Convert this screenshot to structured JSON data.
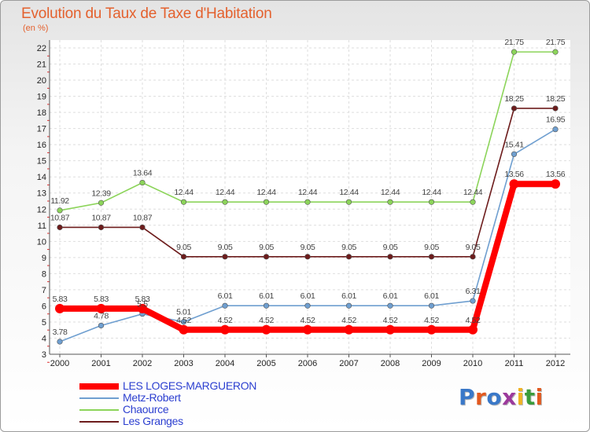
{
  "header": {
    "title": "Evolution du Taux de Taxe d'Habitation",
    "subtitle": "(en %)"
  },
  "logo": {
    "text": "Proxiti",
    "colors": [
      "#3a78c8",
      "#e2591f",
      "#3a78c8",
      "#9c3a9c",
      "#f0b323",
      "#3a9c3a",
      "#e2591f"
    ]
  },
  "chart_data": {
    "type": "line",
    "title": "Evolution du Taux de Taxe d'Habitation",
    "ylabel": "(en %)",
    "xlabel": "",
    "ylim": [
      3,
      22
    ],
    "yticks": [
      3,
      4,
      5,
      6,
      7,
      8,
      9,
      10,
      11,
      12,
      13,
      14,
      15,
      16,
      17,
      18,
      19,
      20,
      21,
      22
    ],
    "categories": [
      "2000",
      "2001",
      "2002",
      "2003",
      "2004",
      "2005",
      "2006",
      "2007",
      "2008",
      "2009",
      "2010",
      "2011",
      "2012"
    ],
    "legend_position": "bottom-left",
    "series": [
      {
        "name": "LES LOGES-MARGUERON",
        "color": "#ff0000",
        "values": [
          5.83,
          5.83,
          5.83,
          4.52,
          4.52,
          4.52,
          4.52,
          4.52,
          4.52,
          4.52,
          4.52,
          13.56,
          13.56
        ],
        "labels": [
          "5.83",
          "5.83",
          "5.83",
          "4.52",
          "4.52",
          "4.52",
          "4.52",
          "4.52",
          "4.52",
          "4.52",
          "4.52",
          "13.56",
          "13.56"
        ]
      },
      {
        "name": "Metz-Robert",
        "color": "#6f9fd0",
        "values": [
          3.78,
          4.78,
          5.5,
          5.01,
          6.01,
          6.01,
          6.01,
          6.01,
          6.01,
          6.01,
          6.31,
          15.41,
          16.95
        ],
        "labels": [
          "3.78",
          "4.78",
          "5.5",
          "5.01",
          "6.01",
          "6.01",
          "6.01",
          "6.01",
          "6.01",
          "6.01",
          "6.31",
          "15.41",
          "16.95"
        ]
      },
      {
        "name": "Chaource",
        "color": "#8cd45a",
        "values": [
          11.92,
          12.39,
          13.64,
          12.44,
          12.44,
          12.44,
          12.44,
          12.44,
          12.44,
          12.44,
          12.44,
          21.75,
          21.75
        ],
        "labels": [
          "11.92",
          "12.39",
          "13.64",
          "12.44",
          "12.44",
          "12.44",
          "12.44",
          "12.44",
          "12.44",
          "12.44",
          "12.44",
          "21.75",
          "21.75"
        ]
      },
      {
        "name": "Les Granges",
        "color": "#6d1c1c",
        "values": [
          10.87,
          10.87,
          10.87,
          9.05,
          9.05,
          9.05,
          9.05,
          9.05,
          9.05,
          9.05,
          9.05,
          18.25,
          18.25
        ],
        "labels": [
          "10.87",
          "10.87",
          "10.87",
          "9.05",
          "9.05",
          "9.05",
          "9.05",
          "9.05",
          "9.05",
          "9.05",
          "9.05",
          "18.25",
          "18.25"
        ]
      }
    ]
  }
}
